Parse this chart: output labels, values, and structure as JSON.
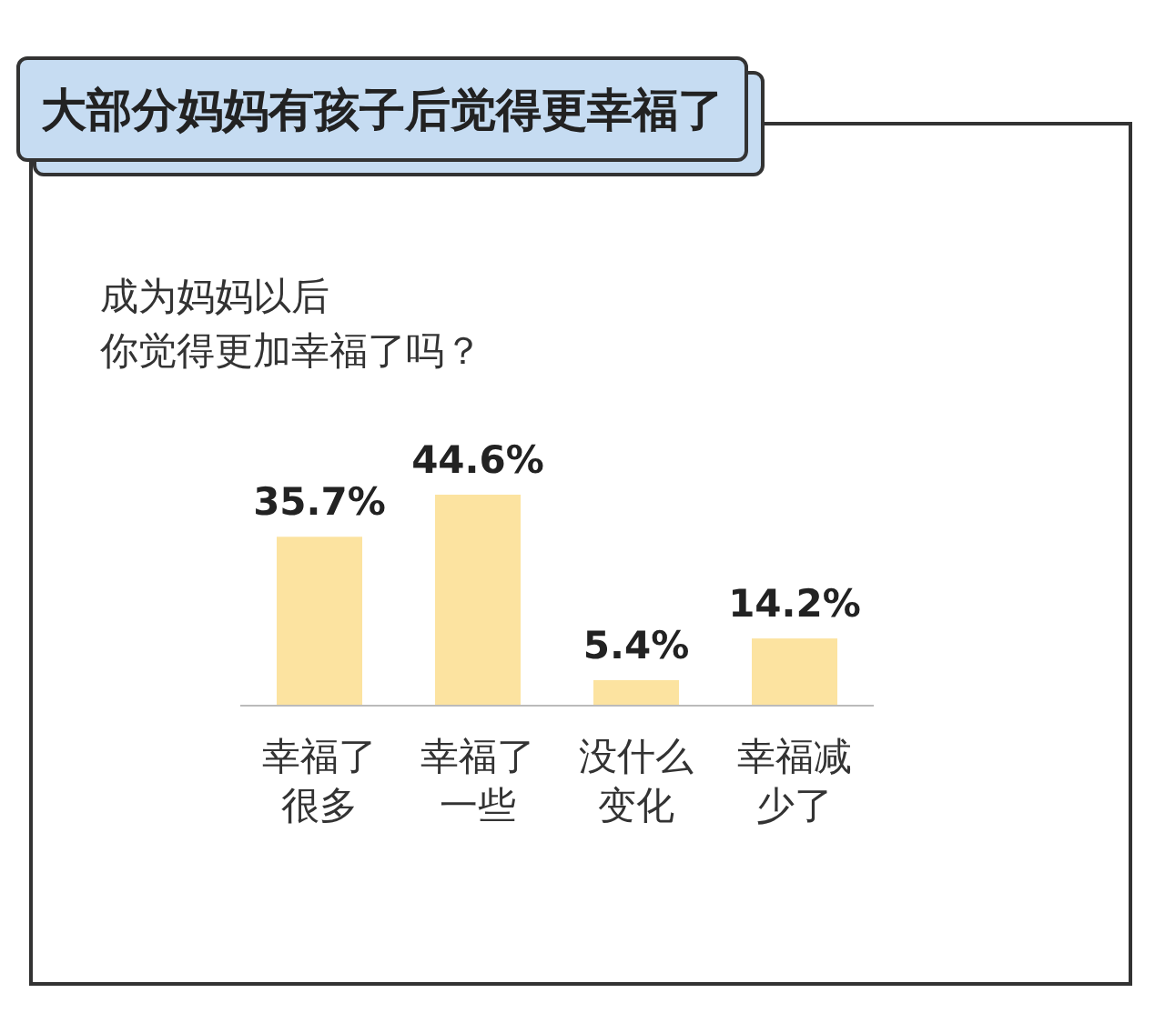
{
  "chart_data": {
    "type": "bar",
    "title": "大部分妈妈有孩子后觉得更幸福了",
    "subtitle": "成为妈妈以后",
    "annotations": [
      "你觉得更加幸福了吗？"
    ],
    "categories": [
      "幸福了很多",
      "幸福了一些",
      "没什么变化",
      "幸福减少了"
    ],
    "values": [
      35.7,
      44.6,
      5.4,
      14.2
    ],
    "value_labels": [
      "35.7%",
      "44.6%",
      "5.4%",
      "14.2%"
    ],
    "color": "#fce3a0"
  }
}
